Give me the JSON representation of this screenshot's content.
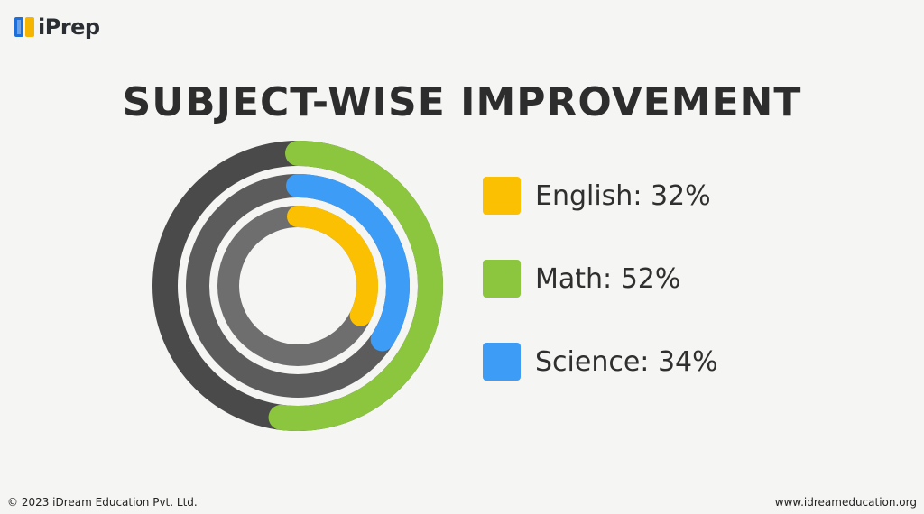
{
  "brand": {
    "logo_text": "iPrep",
    "logo_colors": [
      "#1f6fd9",
      "#f4b400"
    ]
  },
  "chart_data": {
    "type": "radial-bar",
    "title": "SUBJECT-WISE IMPROVEMENT",
    "legend_position": "right",
    "track_color": "#5b5b5b",
    "max": 100,
    "series": [
      {
        "name": "English",
        "value": 32,
        "unit": "%",
        "label": "English: 32%",
        "color": "#fcc003",
        "ring": "inner"
      },
      {
        "name": "Math",
        "value": 52,
        "unit": "%",
        "label": "Math: 52%",
        "color": "#8cc63f",
        "ring": "outer"
      },
      {
        "name": "Science",
        "value": 34,
        "unit": "%",
        "label": "Science: 34%",
        "color": "#3d9cf5",
        "ring": "middle"
      }
    ]
  },
  "footer": {
    "copyright": "© 2023 iDream Education Pvt. Ltd.",
    "website": "www.idreameducation.org"
  }
}
